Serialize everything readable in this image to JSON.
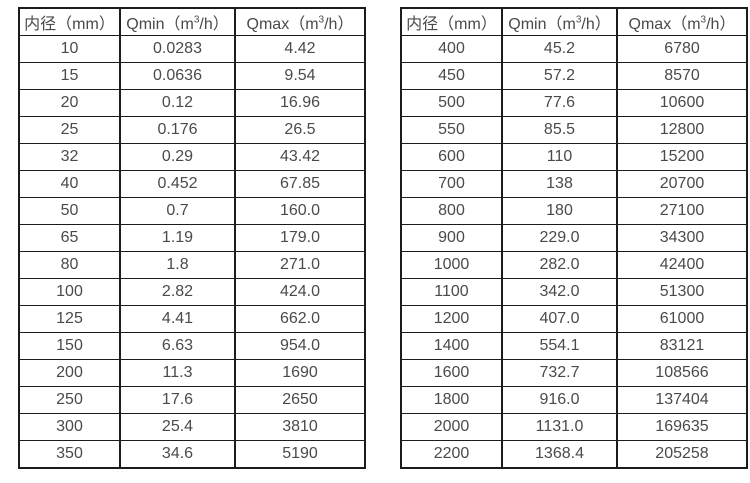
{
  "colors": {
    "background": "#ffffff",
    "border": "#1c1c1c",
    "text": "#4a4a4a"
  },
  "headers": {
    "diameter": "内径（mm）",
    "qmin_prefix": "Qmin（m",
    "qmin_sup": "3",
    "qmin_suffix": "/h）",
    "qmax_prefix": "Qmax（m",
    "qmax_sup": "3",
    "qmax_suffix": "/h）"
  },
  "left_table": {
    "rows": [
      [
        "10",
        "0.0283",
        "4.42"
      ],
      [
        "15",
        "0.0636",
        "9.54"
      ],
      [
        "20",
        "0.12",
        "16.96"
      ],
      [
        "25",
        "0.176",
        "26.5"
      ],
      [
        "32",
        "0.29",
        "43.42"
      ],
      [
        "40",
        "0.452",
        "67.85"
      ],
      [
        "50",
        "0.7",
        "160.0"
      ],
      [
        "65",
        "1.19",
        "179.0"
      ],
      [
        "80",
        "1.8",
        "271.0"
      ],
      [
        "100",
        "2.82",
        "424.0"
      ],
      [
        "125",
        "4.41",
        "662.0"
      ],
      [
        "150",
        "6.63",
        "954.0"
      ],
      [
        "200",
        "11.3",
        "1690"
      ],
      [
        "250",
        "17.6",
        "2650"
      ],
      [
        "300",
        "25.4",
        "3810"
      ],
      [
        "350",
        "34.6",
        "5190"
      ]
    ]
  },
  "right_table": {
    "rows": [
      [
        "400",
        "45.2",
        "6780"
      ],
      [
        "450",
        "57.2",
        "8570"
      ],
      [
        "500",
        "77.6",
        "10600"
      ],
      [
        "550",
        "85.5",
        "12800"
      ],
      [
        "600",
        "110",
        "15200"
      ],
      [
        "700",
        "138",
        "20700"
      ],
      [
        "800",
        "180",
        "27100"
      ],
      [
        "900",
        "229.0",
        "34300"
      ],
      [
        "1000",
        "282.0",
        "42400"
      ],
      [
        "1100",
        "342.0",
        "51300"
      ],
      [
        "1200",
        "407.0",
        "61000"
      ],
      [
        "1400",
        "554.1",
        "83121"
      ],
      [
        "1600",
        "732.7",
        "108566"
      ],
      [
        "1800",
        "916.0",
        "137404"
      ],
      [
        "2000",
        "1131.0",
        "169635"
      ],
      [
        "2200",
        "1368.4",
        "205258"
      ]
    ]
  }
}
